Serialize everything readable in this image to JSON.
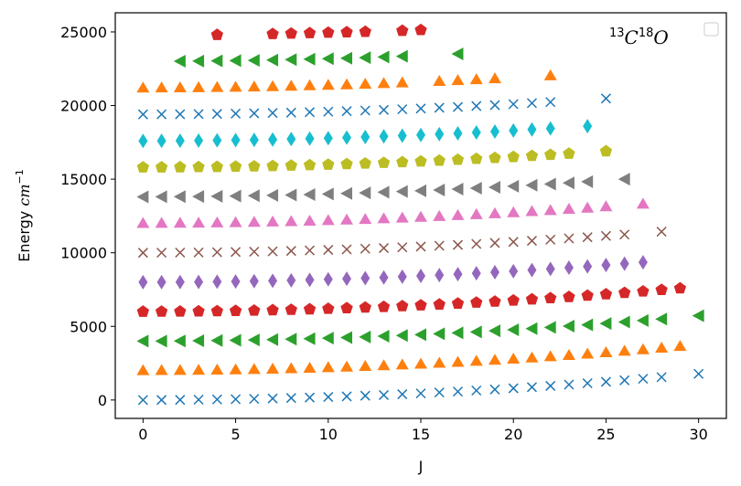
{
  "chart_data": {
    "type": "scatter",
    "title": "",
    "xlabel": "J",
    "ylabel": "Energy cm⁻¹",
    "ylabel_main": "Energy",
    "ylabel_unit": "cm",
    "ylabel_exp": "−1",
    "xlim": [
      -1.5,
      31.5
    ],
    "ylim": [
      -1250,
      26300
    ],
    "xticks": [
      0,
      5,
      10,
      15,
      20,
      25,
      30
    ],
    "yticks": [
      0,
      5000,
      10000,
      15000,
      20000,
      25000
    ],
    "annotation": {
      "sup1": "13",
      "base1": "C",
      "sup2": "18",
      "base2": "O"
    },
    "legend": {
      "location": "top-right",
      "entries": []
    },
    "series": [
      {
        "name": "v0",
        "marker": "x",
        "color": "#1f77b4",
        "x": [
          0,
          1,
          2,
          3,
          4,
          5,
          6,
          7,
          8,
          9,
          10,
          11,
          12,
          13,
          14,
          15,
          16,
          17,
          18,
          19,
          20,
          21,
          22,
          23,
          24,
          25,
          26,
          27,
          28,
          30
        ],
        "values": [
          0,
          4,
          12,
          22,
          37,
          55,
          77,
          103,
          133,
          166,
          203,
          244,
          289,
          338,
          391,
          448,
          509,
          574,
          643,
          716,
          792,
          873,
          958,
          1046,
          1139,
          1235,
          1336,
          1440,
          1549,
          1775
        ]
      },
      {
        "name": "v1",
        "marker": "triangle-up",
        "color": "#ff7f0e",
        "x": [
          0,
          1,
          2,
          3,
          4,
          5,
          6,
          7,
          8,
          9,
          10,
          11,
          12,
          13,
          14,
          15,
          16,
          17,
          18,
          19,
          20,
          21,
          22,
          23,
          24,
          25,
          26,
          27,
          28,
          29
        ],
        "values": [
          2000,
          2004,
          2012,
          2022,
          2037,
          2055,
          2077,
          2102,
          2132,
          2165,
          2202,
          2242,
          2287,
          2335,
          2387,
          2443,
          2503,
          2567,
          2635,
          2707,
          2782,
          2862,
          2945,
          3033,
          3124,
          3220,
          3319,
          3422,
          3530,
          3641
        ]
      },
      {
        "name": "v2",
        "marker": "triangle-left",
        "color": "#2ca02c",
        "x": [
          0,
          1,
          2,
          3,
          4,
          5,
          6,
          7,
          8,
          9,
          10,
          11,
          12,
          13,
          14,
          15,
          16,
          17,
          18,
          19,
          20,
          21,
          22,
          23,
          24,
          25,
          26,
          27,
          28,
          30
        ],
        "values": [
          4000,
          4004,
          4012,
          4022,
          4036,
          4054,
          4076,
          4101,
          4130,
          4163,
          4199,
          4239,
          4283,
          4331,
          4382,
          4437,
          4496,
          4559,
          4625,
          4696,
          4770,
          4848,
          4929,
          5015,
          5104,
          5198,
          5295,
          5396,
          5501,
          5724
        ]
      },
      {
        "name": "v3",
        "marker": "pentagon",
        "color": "#d62728",
        "x": [
          0,
          1,
          2,
          3,
          4,
          5,
          6,
          7,
          8,
          9,
          10,
          11,
          12,
          13,
          14,
          15,
          16,
          17,
          18,
          19,
          20,
          21,
          22,
          23,
          24,
          25,
          26,
          27,
          28,
          29
        ],
        "values": [
          6000,
          6004,
          6011,
          6022,
          6036,
          6054,
          6075,
          6100,
          6129,
          6161,
          6197,
          6236,
          6280,
          6326,
          6377,
          6431,
          6489,
          6551,
          6617,
          6686,
          6759,
          6836,
          6916,
          7000,
          7088,
          7180,
          7276,
          7375,
          7478,
          7585
        ]
      },
      {
        "name": "v4",
        "marker": "thin-diamond",
        "color": "#9467bd",
        "x": [
          0,
          1,
          2,
          3,
          4,
          5,
          6,
          7,
          8,
          9,
          10,
          11,
          12,
          13,
          14,
          15,
          16,
          17,
          18,
          19,
          20,
          21,
          22,
          23,
          24,
          25,
          26,
          27
        ],
        "values": [
          8000,
          8004,
          8011,
          8022,
          8036,
          8053,
          8074,
          8099,
          8127,
          8159,
          8195,
          8234,
          8276,
          8323,
          8373,
          8426,
          8483,
          8544,
          8609,
          8677,
          8749,
          8825,
          8904,
          8987,
          9073,
          9164,
          9258,
          9355
        ]
      },
      {
        "name": "v5",
        "marker": "x",
        "color": "#8c564b",
        "x": [
          0,
          1,
          2,
          3,
          4,
          5,
          6,
          7,
          8,
          9,
          10,
          11,
          12,
          13,
          14,
          15,
          16,
          17,
          18,
          19,
          20,
          21,
          22,
          23,
          24,
          25,
          26,
          28
        ],
        "values": [
          10000,
          10004,
          10011,
          10021,
          10035,
          10053,
          10073,
          10098,
          10126,
          10158,
          10193,
          10231,
          10274,
          10319,
          10368,
          10421,
          10477,
          10537,
          10601,
          10668,
          10738,
          10813,
          10890,
          10972,
          11057,
          11145,
          11237,
          11432
        ]
      },
      {
        "name": "v6",
        "marker": "triangle-up",
        "color": "#e377c2",
        "x": [
          0,
          1,
          2,
          3,
          4,
          5,
          6,
          7,
          8,
          9,
          10,
          11,
          12,
          13,
          14,
          15,
          16,
          17,
          18,
          19,
          20,
          21,
          22,
          23,
          24,
          25,
          27
        ],
        "values": [
          12000,
          12004,
          12011,
          12021,
          12035,
          12052,
          12072,
          12097,
          12125,
          12156,
          12191,
          12229,
          12270,
          12315,
          12364,
          12415,
          12471,
          12530,
          12592,
          12658,
          12728,
          12801,
          12877,
          12957,
          13040,
          13127,
          13311
        ]
      },
      {
        "name": "v7",
        "marker": "triangle-left",
        "color": "#7f7f7f",
        "x": [
          0,
          1,
          2,
          3,
          4,
          5,
          6,
          7,
          8,
          9,
          10,
          11,
          12,
          13,
          14,
          15,
          16,
          17,
          18,
          19,
          20,
          21,
          22,
          23,
          24,
          26
        ],
        "values": [
          13800,
          13804,
          13811,
          13821,
          13834,
          13851,
          13871,
          13896,
          13923,
          13954,
          13989,
          14026,
          14067,
          14112,
          14160,
          14211,
          14266,
          14324,
          14386,
          14451,
          14519,
          14591,
          14666,
          14745,
          14827,
          15002
        ]
      },
      {
        "name": "v8",
        "marker": "pentagon",
        "color": "#bcbd22",
        "x": [
          0,
          1,
          2,
          3,
          4,
          5,
          6,
          7,
          8,
          9,
          10,
          11,
          12,
          13,
          14,
          15,
          16,
          17,
          18,
          19,
          20,
          21,
          22,
          23,
          25
        ],
        "values": [
          15800,
          15804,
          15811,
          15821,
          15834,
          15851,
          15871,
          15895,
          15922,
          15953,
          15987,
          16024,
          16065,
          16109,
          16156,
          16207,
          16261,
          16318,
          16379,
          16443,
          16510,
          16581,
          16655,
          16733,
          16897
        ]
      },
      {
        "name": "v9",
        "marker": "thin-diamond",
        "color": "#17becf",
        "x": [
          0,
          1,
          2,
          3,
          4,
          5,
          6,
          7,
          8,
          9,
          10,
          11,
          12,
          13,
          14,
          15,
          16,
          17,
          18,
          19,
          20,
          21,
          22,
          24
        ],
        "values": [
          17600,
          17604,
          17611,
          17620,
          17634,
          17650,
          17670,
          17694,
          17721,
          17751,
          17785,
          17822,
          17862,
          17905,
          17952,
          18002,
          18055,
          18112,
          18172,
          18235,
          18302,
          18371,
          18444,
          18600
        ]
      },
      {
        "name": "v10",
        "marker": "x",
        "color": "#1f77b4",
        "x": [
          0,
          1,
          2,
          3,
          4,
          5,
          6,
          7,
          8,
          9,
          10,
          11,
          12,
          13,
          14,
          15,
          16,
          17,
          18,
          19,
          20,
          21,
          22,
          25
        ],
        "values": [
          19400,
          19404,
          19410,
          19420,
          19433,
          19450,
          19469,
          19493,
          19519,
          19549,
          19583,
          19619,
          19659,
          19702,
          19748,
          19798,
          19850,
          19906,
          19966,
          20028,
          20094,
          20163,
          20236,
          20480
        ]
      },
      {
        "name": "v11",
        "marker": "triangle-up",
        "color": "#ff7f0e",
        "x": [
          0,
          1,
          2,
          3,
          4,
          5,
          6,
          7,
          8,
          9,
          10,
          11,
          12,
          13,
          14,
          16,
          17,
          18,
          19,
          22
        ],
        "values": [
          21200,
          21204,
          21210,
          21220,
          21233,
          21249,
          21269,
          21292,
          21318,
          21348,
          21381,
          21417,
          21456,
          21499,
          21544,
          21645,
          21700,
          21759,
          21821,
          22030
        ]
      },
      {
        "name": "v12",
        "marker": "triangle-left",
        "color": "#2ca02c",
        "x": [
          2,
          3,
          4,
          5,
          6,
          7,
          8,
          9,
          10,
          11,
          12,
          13,
          14,
          17
        ],
        "values": [
          23010,
          23020,
          23033,
          23049,
          23069,
          23092,
          23118,
          23148,
          23180,
          23216,
          23255,
          23297,
          23342,
          23508
        ]
      },
      {
        "name": "v13",
        "marker": "pentagon",
        "color": "#d62728",
        "x": [
          4,
          7,
          8,
          9,
          10,
          11,
          12,
          14,
          15
        ],
        "values": [
          24800,
          24860,
          24890,
          24920,
          24950,
          24980,
          25010,
          25080,
          25130
        ]
      }
    ]
  }
}
